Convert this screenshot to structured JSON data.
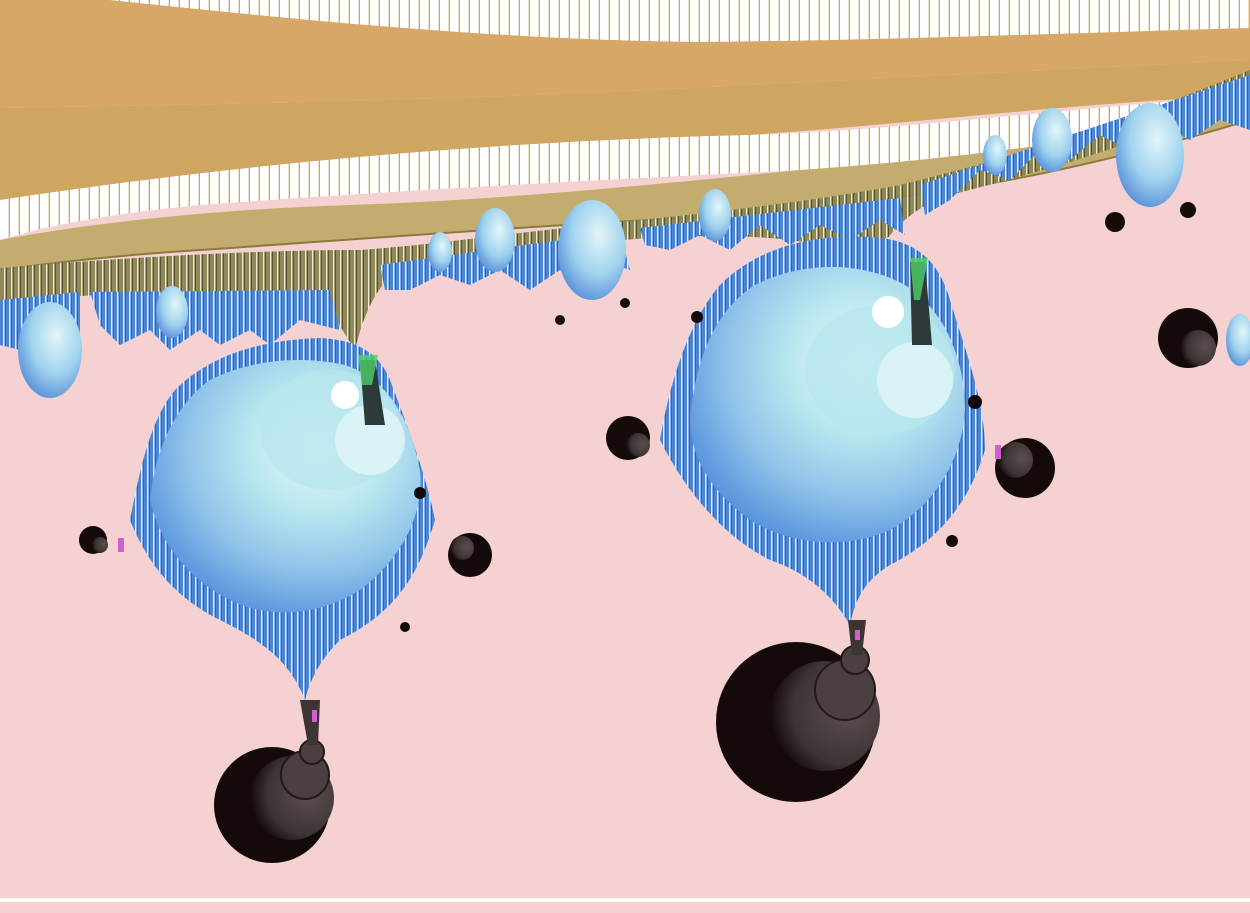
{
  "image": {
    "kind": "rendered-fractal-artwork",
    "palette": {
      "background": "#f6d1d1",
      "sand_light": "#d7a767",
      "sand_mid": "#cfa562",
      "sand_olive": "#c3ad6e",
      "fringe_dark": "#6e6a3c",
      "blue_dark": "#3f78d1",
      "blue_mid": "#7fb3e6",
      "blue_light": "#b8e6ee",
      "blue_pale": "#dff5f7",
      "accent_green": "#4fd06a",
      "accent_magenta": "#d060d0",
      "dark_ring": "#3d3434",
      "dark_ring_deep": "#140a0a",
      "bottom_line": "#ffffff"
    }
  }
}
